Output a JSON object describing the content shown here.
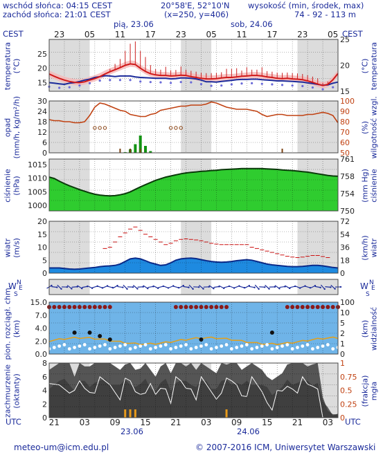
{
  "header": {
    "sunrise": "wschód słońca: 04:15 CEST",
    "sunset": "zachód słońca: 21:01 CEST",
    "coords": "20°58'E, 52°10'N",
    "grid": "(x=250, y=406)",
    "elev_title": "wysokość (min, środek, max)",
    "elev_values": "74 - 92 - 113 m"
  },
  "timeline": {
    "tz_top": "CEST",
    "tz_bottom": "UTC",
    "hours_top": [
      "23",
      "05",
      "11",
      "17",
      "23",
      "05",
      "11",
      "17",
      "23",
      "05"
    ],
    "hours_bottom": [
      "21",
      "03",
      "09",
      "15",
      "21",
      "03",
      "09",
      "15",
      "21",
      "03"
    ],
    "day1_top": "pią, 23.06",
    "day2_top": "sob, 24.06",
    "day1_bottom": "23.06",
    "day2_bottom": "24.06"
  },
  "panels": {
    "temp": {
      "left": "temperatura\n(°C)",
      "right": "(°C)\ntemperatura",
      "ticks_l": [
        "25",
        "20",
        "15"
      ],
      "ticks_r": [
        "25",
        "20",
        "15"
      ]
    },
    "precip": {
      "left": "opad\n(mm/h, kg/m²/h)",
      "right": "(%)\nwilgotność wzgl.",
      "ticks_l": [
        "30",
        "24",
        "18",
        "12",
        "6",
        "0"
      ],
      "ticks_r": [
        "100",
        "90",
        "80",
        "70",
        "60",
        "50"
      ]
    },
    "press": {
      "left": "ciśnienie\n(hPa)",
      "right": "(mm Hg)\nciśnienie",
      "ticks_l": [
        "1015",
        "1010",
        "1005",
        "1000"
      ],
      "ticks_r": [
        "761",
        "758",
        "754",
        "750"
      ]
    },
    "wind": {
      "left": "wiatr\n(m/s)",
      "right": "(km/h)\nwiatr",
      "ticks_l": [
        "20",
        "15",
        "10",
        "5",
        "0"
      ],
      "ticks_r": [
        "72",
        "54",
        "36",
        "18",
        "0"
      ]
    },
    "vis": {
      "left": "pion. rozciągł. chm.\n(km)",
      "right": "(km)\nwidzialność",
      "ticks_l": [
        "15.0",
        "7.0",
        "4.0",
        "2.0",
        "0.0"
      ],
      "ticks_r": [
        "100",
        "10",
        "5",
        "2",
        "1",
        "0"
      ]
    },
    "cloud": {
      "left": "zachmurzenie\n(oktanty)",
      "right": "(frakcja)\nmgła",
      "ticks_l": [
        "8",
        "6",
        "4",
        "2",
        "0"
      ],
      "ticks_r": [
        "1",
        "0.75",
        "0.5",
        "0.25",
        "0"
      ]
    }
  },
  "compass": {
    "w": "W",
    "n": "N",
    "s": "S",
    "e": "E"
  },
  "footer": {
    "email": "meteo-um@icm.edu.pl",
    "copyright": "© 2007-2016 ICM, Uniwersytet Warszawski"
  },
  "colors": {
    "temp": "#d01818",
    "dew": "#1a2a9a",
    "rh": "#c04010",
    "precip": "#129212",
    "pressure": "#2fcc2f",
    "wind": "#0a7ad0",
    "grid": "#000000"
  },
  "chart_data": {
    "type": "line",
    "title": "",
    "hours": 58,
    "series": [
      {
        "name": "temperatura",
        "values": [
          18,
          17.2,
          16.5,
          15.9,
          15.4,
          15.1,
          15,
          15.3,
          15.9,
          16.4,
          17.1,
          18,
          18.8,
          19.5,
          20.2,
          21,
          21.5,
          21.3,
          20,
          18.9,
          18.1,
          17.7,
          17.5,
          17.5,
          17.3,
          17.4,
          17.6,
          17.5,
          17.1,
          16.8,
          16.5,
          16.3,
          16.3,
          16.4,
          16.6,
          16.8,
          16.8,
          17,
          17.2,
          17.3,
          17.5,
          17.5,
          17.3,
          17,
          16.8,
          16.5,
          16.4,
          16.5,
          16.3,
          16.2,
          16,
          15.6,
          15.1,
          14.5,
          14,
          14.4,
          16,
          18.2
        ]
      },
      {
        "name": "rosa",
        "values": [
          15,
          14.8,
          14.6,
          14.4,
          14.8,
          15,
          15.4,
          15.9,
          16.2,
          16.8,
          17.1,
          17.4,
          17.3,
          17.1,
          17.3,
          17.3,
          17.3,
          17,
          16.8,
          16.7,
          16.6,
          16.5,
          16.5,
          16.5,
          16.3,
          16.4,
          16.6,
          16.6,
          16.5,
          16.3,
          15.9,
          15.3,
          15.3,
          15.2,
          15.4,
          15.6,
          15.8,
          16,
          16.1,
          16.1,
          16.2,
          16.2,
          16,
          15.9,
          15.8,
          15.6,
          15.6,
          15.5,
          15.4,
          15.3,
          15.2,
          14.9,
          14.7,
          14.4,
          14.1,
          14.2,
          14.8,
          15.2
        ]
      },
      {
        "name": "wilgotność",
        "values": [
          82,
          81,
          81,
          80,
          80,
          79,
          79,
          80,
          86,
          94,
          98,
          97,
          95,
          93,
          91,
          90,
          87,
          86,
          85,
          85,
          87,
          88,
          91,
          92,
          93,
          94,
          95,
          95,
          96,
          96,
          96,
          97,
          99,
          98,
          96,
          94,
          93,
          92,
          92,
          92,
          91,
          90,
          87,
          85,
          86,
          87,
          87,
          86,
          86,
          86,
          86,
          87,
          87,
          88,
          89,
          88,
          86,
          79
        ]
      },
      {
        "name": "ciśnienie",
        "values": [
          1010.4,
          1009.9,
          1008.9,
          1008,
          1007.2,
          1006.5,
          1005.8,
          1005.2,
          1004.6,
          1004.1,
          1003.8,
          1003.6,
          1003.5,
          1003.6,
          1003.9,
          1004.3,
          1005,
          1005.9,
          1006.8,
          1007.6,
          1008.4,
          1009.2,
          1009.8,
          1010.4,
          1010.8,
          1011.2,
          1011.6,
          1011.9,
          1012.1,
          1012.3,
          1012.5,
          1012.6,
          1012.8,
          1012.9,
          1013.1,
          1013.2,
          1013.3,
          1013.4,
          1013.5,
          1013.5,
          1013.5,
          1013.5,
          1013.5,
          1013.4,
          1013.3,
          1013.2,
          1013,
          1012.9,
          1012.8,
          1012.6,
          1012.4,
          1012.2,
          1011.9,
          1011.6,
          1011.3,
          1011,
          1010.8,
          1010.7
        ]
      },
      {
        "name": "wiatr",
        "values": [
          2,
          2,
          2,
          1.8,
          1.6,
          1.5,
          1.6,
          1.8,
          2,
          2.2,
          2.5,
          2.7,
          2.8,
          3,
          3.5,
          4.5,
          5.5,
          5.8,
          5.5,
          4.8,
          4,
          3.5,
          3,
          3.2,
          4,
          5,
          5.5,
          5.7,
          5.8,
          5.6,
          5.2,
          4.8,
          4.5,
          4.3,
          4.2,
          4.3,
          4.5,
          4.8,
          5,
          5.2,
          5,
          4.5,
          4,
          3.5,
          3.2,
          3,
          2.8,
          2.6,
          2.5,
          2.5,
          2.6,
          2.8,
          3,
          3,
          2.8,
          2.5,
          2.2,
          2
        ]
      },
      {
        "name": "porywy",
        "values": [
          null,
          null,
          null,
          null,
          null,
          null,
          null,
          null,
          null,
          null,
          null,
          9.5,
          10,
          12,
          14,
          15.5,
          17,
          17.8,
          16.5,
          15,
          14,
          13,
          12,
          11,
          11.5,
          12.5,
          13,
          13.2,
          13,
          12.8,
          12.5,
          12,
          11.5,
          11.2,
          11,
          11,
          11,
          11,
          11,
          11,
          10,
          9.5,
          9,
          8.5,
          8,
          7.5,
          7,
          6.5,
          6.2,
          6,
          6.2,
          6.5,
          6.8,
          6.8,
          6.4,
          6,
          null,
          null
        ]
      },
      {
        "name": "opad",
        "values": [
          0,
          0,
          0,
          0,
          0,
          0,
          0,
          0,
          0,
          0,
          0,
          0,
          0,
          0,
          0,
          0.4,
          2,
          5,
          10,
          4,
          1,
          0,
          0,
          0,
          0,
          0,
          0,
          0,
          0,
          0,
          0,
          0,
          0,
          0,
          0,
          0,
          0,
          0,
          0,
          0,
          0,
          0,
          0,
          0,
          0,
          0,
          0,
          0,
          0,
          0,
          0,
          0,
          0,
          0,
          0,
          0,
          0,
          0
        ]
      }
    ],
    "ylim_temp": [
      12,
      30
    ],
    "ylim_precip": [
      0,
      30
    ],
    "ylim_rh": [
      50,
      100
    ],
    "ylim_press": [
      998,
      1017
    ],
    "ylim_wind": [
      0,
      20
    ],
    "ylim_vis": [
      0,
      15
    ],
    "ylim_cloud": [
      0,
      8
    ]
  }
}
